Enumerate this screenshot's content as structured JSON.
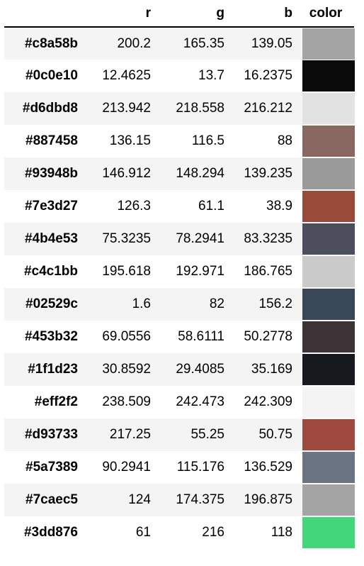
{
  "table": {
    "columns": {
      "index": "",
      "r": "r",
      "g": "g",
      "b": "b",
      "color": "color"
    },
    "rows": [
      {
        "hex": "#c8a58b",
        "r": "200.2",
        "g": "165.35",
        "b": "139.05",
        "swatch": "#a4a4a4"
      },
      {
        "hex": "#0c0e10",
        "r": "12.4625",
        "g": "13.7",
        "b": "16.2375",
        "swatch": "#0b0b0b"
      },
      {
        "hex": "#d6dbd8",
        "r": "213.942",
        "g": "218.558",
        "b": "216.212",
        "swatch": "#e2e2e2"
      },
      {
        "hex": "#887458",
        "r": "136.15",
        "g": "116.5",
        "b": "88",
        "swatch": "#8a6862"
      },
      {
        "hex": "#93948b",
        "r": "146.912",
        "g": "148.294",
        "b": "139.235",
        "swatch": "#9a9a9a"
      },
      {
        "hex": "#7e3d27",
        "r": "126.3",
        "g": "61.1",
        "b": "38.9",
        "swatch": "#9a4a38"
      },
      {
        "hex": "#4b4e53",
        "r": "75.3235",
        "g": "78.2941",
        "b": "83.3235",
        "swatch": "#4c4e5c"
      },
      {
        "hex": "#c4c1bb",
        "r": "195.618",
        "g": "192.971",
        "b": "186.765",
        "swatch": "#cacaca"
      },
      {
        "hex": "#02529c",
        "r": "1.6",
        "g": "82",
        "b": "156.2",
        "swatch": "#394858"
      },
      {
        "hex": "#453b32",
        "r": "69.0556",
        "g": "58.6111",
        "b": "50.2778",
        "swatch": "#3d3438"
      },
      {
        "hex": "#1f1d23",
        "r": "30.8592",
        "g": "29.4085",
        "b": "35.169",
        "swatch": "#161a1e"
      },
      {
        "hex": "#eff2f2",
        "r": "238.509",
        "g": "242.473",
        "b": "242.309",
        "swatch": "#f4f4f4"
      },
      {
        "hex": "#d93733",
        "r": "217.25",
        "g": "55.25",
        "b": "50.75",
        "swatch": "#9e4a40"
      },
      {
        "hex": "#5a7389",
        "r": "90.2941",
        "g": "115.176",
        "b": "136.529",
        "swatch": "#6a7482"
      },
      {
        "hex": "#7caec5",
        "r": "124",
        "g": "174.375",
        "b": "196.875",
        "swatch": "#a4a4a4"
      },
      {
        "hex": "#3dd876",
        "r": "61",
        "g": "216",
        "b": "118",
        "swatch": "#44d67a"
      }
    ]
  }
}
